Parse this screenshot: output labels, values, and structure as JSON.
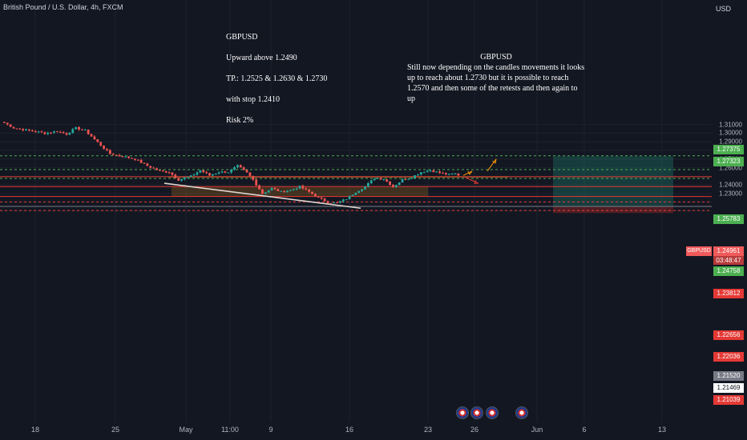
{
  "symbol_title": "British Pound / U.S. Dollar, 4h, FXCM",
  "currency": "USD",
  "note1": {
    "lines": [
      "GBPUSD",
      "Upward above 1.2490",
      "TP.:  1.2525  &  1.2630 & 1.2730",
      "with stop 1.2410",
      "Risk 2%"
    ]
  },
  "note2": {
    "title": "GBPUSD",
    "body": "Still now depending on the candles movements it looks up to reach about 1.2730 but it is possible to reach 1.2570 and then some of the retests and then again to up"
  },
  "y_ticks": [
    "1.31000",
    "1.30000",
    "1.29000",
    "1.28000",
    "1.27000",
    "1.26000",
    "1.24000",
    "1.23000"
  ],
  "x_ticks": [
    "18",
    "25",
    "May",
    "11:00",
    "9",
    "16",
    "23",
    "26",
    "Jun",
    "6",
    "13"
  ],
  "price_tags": [
    {
      "value": "1.27375",
      "bg": "#4caf50",
      "fg": "#ffffff"
    },
    {
      "value": "1.27323",
      "bg": "#4caf50",
      "fg": "#ffffff"
    },
    {
      "value": "1.25783",
      "bg": "#4caf50",
      "fg": "#ffffff"
    },
    {
      "value": "1.24961",
      "bg": "#f05a5a",
      "fg": "#ffffff"
    },
    {
      "value": "1.24758",
      "bg": "#4caf50",
      "fg": "#ffffff"
    },
    {
      "value": "1.23812",
      "bg": "#e53935",
      "fg": "#ffffff"
    },
    {
      "value": "1.22656",
      "bg": "#e53935",
      "fg": "#ffffff"
    },
    {
      "value": "1.22036",
      "bg": "#e53935",
      "fg": "#ffffff"
    },
    {
      "value": "1.21520",
      "bg": "#787b86",
      "fg": "#ffffff"
    },
    {
      "value": "1.21469",
      "bg": "#ffffff",
      "fg": "#131722"
    },
    {
      "value": "1.21039",
      "bg": "#e53935",
      "fg": "#ffffff"
    }
  ],
  "symbol_tag": "GBPUSD",
  "countdown": "03:48:47",
  "colors": {
    "up": "#26a69a",
    "down": "#ef5350",
    "green_line": "#4caf50",
    "red_line": "#e53935"
  },
  "chart_data": {
    "type": "candlestick",
    "symbol": "GBPUSD",
    "timeframe": "4h",
    "ylim": [
      1.2075,
      1.314
    ],
    "close_path": [
      [
        0,
        1.312
      ],
      [
        3,
        1.306
      ],
      [
        8,
        1.303
      ],
      [
        13,
        1.3
      ],
      [
        17,
        1.302
      ],
      [
        20,
        1.299
      ],
      [
        23,
        1.306
      ],
      [
        26,
        1.303
      ],
      [
        31,
        1.286
      ],
      [
        34,
        1.276
      ],
      [
        38,
        1.273
      ],
      [
        42,
        1.27
      ],
      [
        46,
        1.262
      ],
      [
        50,
        1.256
      ],
      [
        53,
        1.255
      ],
      [
        56,
        1.246
      ],
      [
        60,
        1.25
      ],
      [
        63,
        1.257
      ],
      [
        66,
        1.251
      ],
      [
        69,
        1.255
      ],
      [
        72,
        1.255
      ],
      [
        75,
        1.262
      ],
      [
        78,
        1.254
      ],
      [
        80,
        1.246
      ],
      [
        83,
        1.23
      ],
      [
        86,
        1.236
      ],
      [
        89,
        1.232
      ],
      [
        92,
        1.234
      ],
      [
        95,
        1.238
      ],
      [
        98,
        1.232
      ],
      [
        101,
        1.225
      ],
      [
        104,
        1.22
      ],
      [
        107,
        1.219
      ],
      [
        110,
        1.224
      ],
      [
        113,
        1.232
      ],
      [
        116,
        1.238
      ],
      [
        119,
        1.248
      ],
      [
        122,
        1.247
      ],
      [
        125,
        1.238
      ],
      [
        128,
        1.246
      ],
      [
        131,
        1.249
      ],
      [
        134,
        1.255
      ],
      [
        137,
        1.257
      ],
      [
        140,
        1.254
      ],
      [
        143,
        1.252
      ],
      [
        145,
        1.253
      ],
      [
        146,
        1.251
      ]
    ],
    "levels": [
      {
        "price": 1.2737,
        "style": "dashed",
        "color": "#4caf50"
      },
      {
        "price": 1.2578,
        "style": "dashed",
        "color": "#4caf50"
      },
      {
        "price": 1.2476,
        "style": "dashed",
        "color": "#4caf50"
      },
      {
        "price": 1.2496,
        "style": "solid",
        "color": "#e53935"
      },
      {
        "price": 1.2381,
        "style": "solid",
        "color": "#e53935"
      },
      {
        "price": 1.2266,
        "style": "solid",
        "color": "#e53935"
      },
      {
        "price": 1.2204,
        "style": "dashed",
        "color": "#e53935"
      },
      {
        "price": 1.2152,
        "style": "solid",
        "color": "#787b86"
      },
      {
        "price": 1.2104,
        "style": "dashed",
        "color": "#e53935"
      }
    ],
    "position": {
      "entry": 1.2152,
      "target": 1.2732,
      "stop": 1.2075
    },
    "forecast_arrows": [
      {
        "from": 1.251,
        "to": 1.256
      },
      {
        "from": 1.2485,
        "to": 1.242
      },
      {
        "from": 1.256,
        "to": 1.27
      }
    ]
  }
}
